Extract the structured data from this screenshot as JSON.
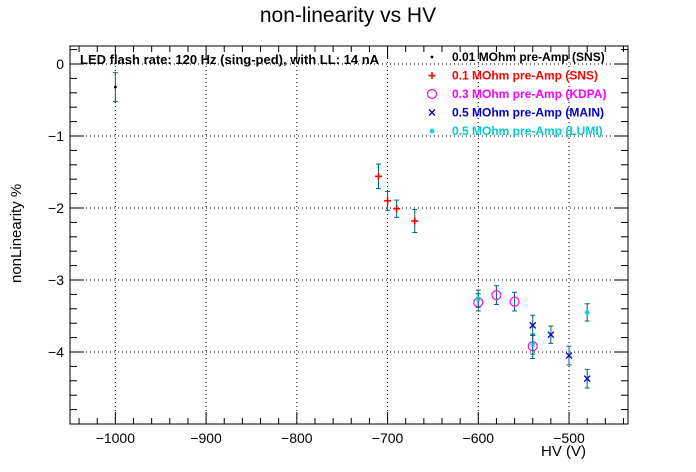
{
  "chart_data": {
    "type": "scatter",
    "title": "non-linearity vs HV",
    "xlabel": "HV (V)",
    "ylabel": "nonLinearity %",
    "xlim": [
      -1050,
      -435
    ],
    "ylim": [
      -5.0,
      0.25
    ],
    "xticks": [
      -1000,
      -900,
      -800,
      -700,
      -600,
      -500
    ],
    "yticks": [
      -4,
      -3,
      -2,
      -1,
      0
    ],
    "grid": true,
    "legend_placement": "top-right",
    "annotation": "LED flash rate: 120 Hz  (sing-ped), with LL: 14 nA",
    "series": [
      {
        "name": "0.01 MOhm pre-Amp (SNS)",
        "marker": ".",
        "color": "#000000",
        "points": [
          {
            "x": -1000,
            "y": -0.32,
            "err": 0.2
          }
        ]
      },
      {
        "name": "0.1 MOhm pre-Amp (SNS)",
        "marker": "+",
        "color": "#ff0000",
        "points": [
          {
            "x": -710,
            "y": -1.56,
            "err": 0.17
          },
          {
            "x": -700,
            "y": -1.9,
            "err": 0.13
          },
          {
            "x": -690,
            "y": -2.01,
            "err": 0.12
          },
          {
            "x": -670,
            "y": -2.18,
            "err": 0.16
          }
        ]
      },
      {
        "name": "0.3 MOhm pre-Amp (KDPA)",
        "marker": "o",
        "color": "#ff00ff",
        "points": [
          {
            "x": -600,
            "y": -3.31,
            "err": 0.12
          },
          {
            "x": -580,
            "y": -3.21,
            "err": 0.13
          },
          {
            "x": -560,
            "y": -3.3,
            "err": 0.13
          },
          {
            "x": -540,
            "y": -3.92,
            "err": 0.17
          }
        ]
      },
      {
        "name": "0.5 MOhm pre-Amp (MAIN)",
        "marker": "x",
        "color": "#0000cc",
        "points": [
          {
            "x": -540,
            "y": -3.63,
            "err": 0.14
          },
          {
            "x": -520,
            "y": -3.76,
            "err": 0.12
          },
          {
            "x": -500,
            "y": -4.05,
            "err": 0.13
          },
          {
            "x": -480,
            "y": -4.37,
            "err": 0.13
          }
        ]
      },
      {
        "name": "0.5 MOhm pre-Amp (LUMI)",
        "marker": "*",
        "color": "#00cccc",
        "points": [
          {
            "x": -600,
            "y": -3.26,
            "err": 0.12
          },
          {
            "x": -540,
            "y": -3.9,
            "err": 0.13
          },
          {
            "x": -480,
            "y": -3.45,
            "err": 0.12
          }
        ]
      }
    ],
    "error_bar_color": "#006666"
  }
}
